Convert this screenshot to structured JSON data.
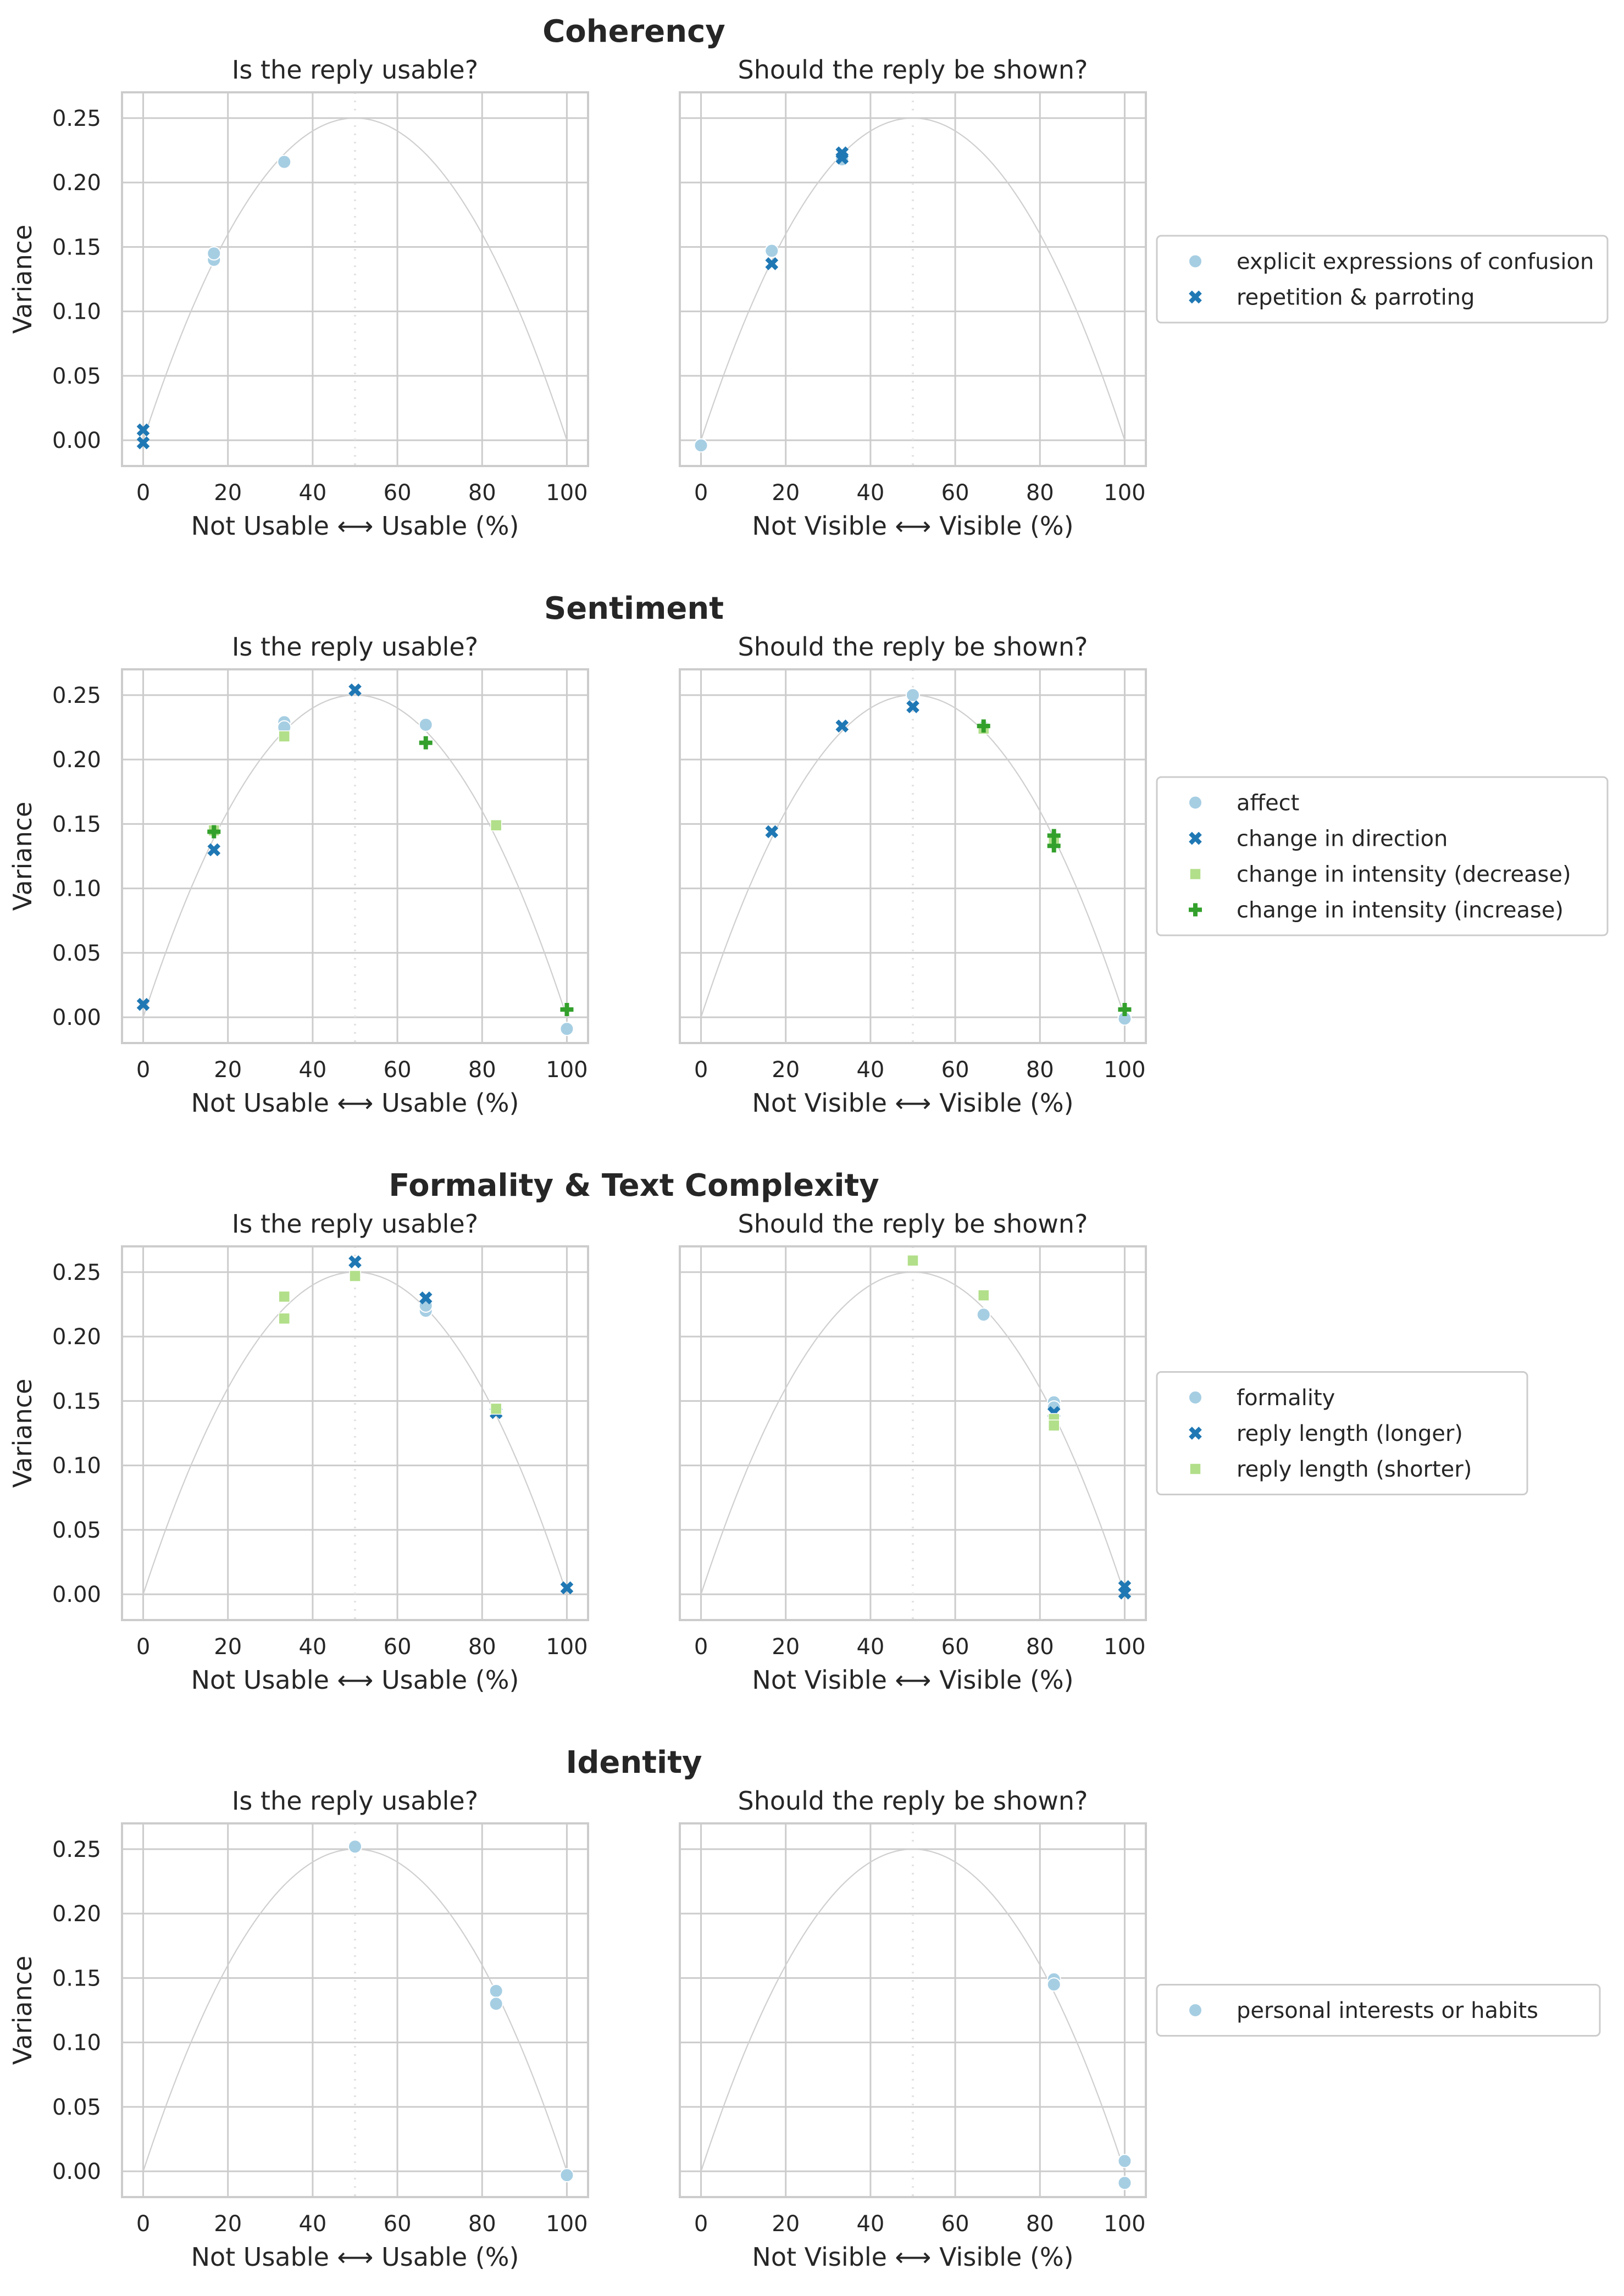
{
  "figure": {
    "y_axis_label": "Variance",
    "panel_titles": [
      "Is the reply usable?",
      "Should the reply be shown?"
    ],
    "x_axis_labels": [
      "Not Usable ⟷ Usable (%)",
      "Not Visible ⟷ Visible (%)"
    ]
  },
  "colors": {
    "series": [
      "#a6cee3",
      "#1f78b4",
      "#b2df8a",
      "#33a02c"
    ],
    "grid": "#cccccc",
    "frame": "#cccccc",
    "parabola": "#cfcfcf",
    "midline": "#e3e3e3",
    "marker_edge": "#ffffff"
  },
  "chart_data": [
    {
      "type": "scatter",
      "title": "Coherency",
      "xlim": [
        -5,
        105
      ],
      "ylim": [
        -0.02,
        0.27
      ],
      "xticks": [
        0,
        20,
        40,
        60,
        80,
        100
      ],
      "yticks": [
        0.0,
        0.05,
        0.1,
        0.15,
        0.2,
        0.25
      ],
      "ytick_labels": [
        "0.00",
        "0.05",
        "0.10",
        "0.15",
        "0.20",
        "0.25"
      ],
      "reference_curve": "x(100-x)/10000",
      "reference_line_x": 50,
      "legend": [
        "explicit expressions of confusion",
        "repetition & parroting"
      ],
      "panels": [
        {
          "title": "Is the reply usable?",
          "xlabel": "Not Usable ⟷ Usable (%)",
          "ylabel": "Variance",
          "series": [
            {
              "name": "explicit expressions of confusion",
              "marker": "circle",
              "points": [
                [
                  16.7,
                  0.14
                ],
                [
                  16.7,
                  0.145
                ],
                [
                  33.3,
                  0.216
                ]
              ]
            },
            {
              "name": "repetition & parroting",
              "marker": "x",
              "points": [
                [
                  0,
                  0.008
                ],
                [
                  0,
                  -0.002
                ]
              ]
            }
          ]
        },
        {
          "title": "Should the reply be shown?",
          "xlabel": "Not Visible ⟷ Visible (%)",
          "ylabel": "",
          "series": [
            {
              "name": "explicit expressions of confusion",
              "marker": "circle",
              "points": [
                [
                  0,
                  -0.004
                ],
                [
                  16.7,
                  0.147
                ],
                [
                  33.3,
                  0.218
                ]
              ]
            },
            {
              "name": "repetition & parroting",
              "marker": "x",
              "points": [
                [
                  16.7,
                  0.137
                ],
                [
                  33.3,
                  0.223
                ],
                [
                  33.3,
                  0.219
                ]
              ]
            }
          ]
        }
      ]
    },
    {
      "type": "scatter",
      "title": "Sentiment",
      "xlim": [
        -5,
        105
      ],
      "ylim": [
        -0.02,
        0.27
      ],
      "xticks": [
        0,
        20,
        40,
        60,
        80,
        100
      ],
      "yticks": [
        0.0,
        0.05,
        0.1,
        0.15,
        0.2,
        0.25
      ],
      "ytick_labels": [
        "0.00",
        "0.05",
        "0.10",
        "0.15",
        "0.20",
        "0.25"
      ],
      "reference_curve": "x(100-x)/10000",
      "reference_line_x": 50,
      "legend": [
        "affect",
        "change in direction",
        "change in intensity (decrease)",
        "change in intensity (increase)"
      ],
      "panels": [
        {
          "title": "Is the reply usable?",
          "xlabel": "Not Usable ⟷ Usable (%)",
          "ylabel": "Variance",
          "series": [
            {
              "name": "affect",
              "marker": "circle",
              "points": [
                [
                  33.3,
                  0.229
                ],
                [
                  33.3,
                  0.225
                ],
                [
                  66.7,
                  0.227
                ],
                [
                  100,
                  -0.009
                ]
              ]
            },
            {
              "name": "change in direction",
              "marker": "x",
              "points": [
                [
                  0,
                  0.01
                ],
                [
                  16.7,
                  0.13
                ],
                [
                  50,
                  0.254
                ]
              ]
            },
            {
              "name": "change in intensity (decrease)",
              "marker": "square",
              "points": [
                [
                  16.7,
                  0.145
                ],
                [
                  33.3,
                  0.218
                ],
                [
                  83.3,
                  0.149
                ]
              ]
            },
            {
              "name": "change in intensity (increase)",
              "marker": "plus",
              "points": [
                [
                  16.7,
                  0.144
                ],
                [
                  66.7,
                  0.213
                ],
                [
                  100,
                  0.006
                ]
              ]
            }
          ]
        },
        {
          "title": "Should the reply be shown?",
          "xlabel": "Not Visible ⟷ Visible (%)",
          "ylabel": "",
          "series": [
            {
              "name": "affect",
              "marker": "circle",
              "points": [
                [
                  50,
                  0.25
                ],
                [
                  66.7,
                  0.225
                ],
                [
                  100,
                  -0.001
                ]
              ]
            },
            {
              "name": "change in direction",
              "marker": "x",
              "points": [
                [
                  16.7,
                  0.144
                ],
                [
                  33.3,
                  0.226
                ],
                [
                  50,
                  0.241
                ]
              ]
            },
            {
              "name": "change in intensity (decrease)",
              "marker": "square",
              "points": [
                [
                  66.7,
                  0.224
                ],
                [
                  83.3,
                  0.136
                ]
              ]
            },
            {
              "name": "change in intensity (increase)",
              "marker": "plus",
              "points": [
                [
                  66.7,
                  0.226
                ],
                [
                  83.3,
                  0.141
                ],
                [
                  83.3,
                  0.133
                ],
                [
                  100,
                  0.006
                ]
              ]
            }
          ]
        }
      ]
    },
    {
      "type": "scatter",
      "title": "Formality & Text Complexity",
      "xlim": [
        -5,
        105
      ],
      "ylim": [
        -0.02,
        0.27
      ],
      "xticks": [
        0,
        20,
        40,
        60,
        80,
        100
      ],
      "yticks": [
        0.0,
        0.05,
        0.1,
        0.15,
        0.2,
        0.25
      ],
      "ytick_labels": [
        "0.00",
        "0.05",
        "0.10",
        "0.15",
        "0.20",
        "0.25"
      ],
      "reference_curve": "x(100-x)/10000",
      "reference_line_x": 50,
      "legend": [
        "formality",
        "reply length (longer)",
        "reply length (shorter)"
      ],
      "panels": [
        {
          "title": "Is the reply usable?",
          "xlabel": "Not Usable ⟷ Usable (%)",
          "ylabel": "Variance",
          "series": [
            {
              "name": "formality",
              "marker": "circle",
              "points": [
                [
                  66.7,
                  0.22
                ],
                [
                  66.7,
                  0.224
                ]
              ]
            },
            {
              "name": "reply length (longer)",
              "marker": "x",
              "points": [
                [
                  50,
                  0.258
                ],
                [
                  66.7,
                  0.23
                ],
                [
                  83.3,
                  0.141
                ],
                [
                  100,
                  0.005
                ]
              ]
            },
            {
              "name": "reply length (shorter)",
              "marker": "square",
              "points": [
                [
                  33.3,
                  0.231
                ],
                [
                  33.3,
                  0.214
                ],
                [
                  50,
                  0.247
                ],
                [
                  83.3,
                  0.144
                ]
              ]
            }
          ]
        },
        {
          "title": "Should the reply be shown?",
          "xlabel": "Not Visible ⟷ Visible (%)",
          "ylabel": "",
          "series": [
            {
              "name": "formality",
              "marker": "circle",
              "points": [
                [
                  66.7,
                  0.217
                ],
                [
                  83.3,
                  0.149
                ],
                [
                  83.3,
                  0.145
                ]
              ]
            },
            {
              "name": "reply length (longer)",
              "marker": "x",
              "points": [
                [
                  83.3,
                  0.141
                ],
                [
                  100,
                  0.006
                ],
                [
                  100,
                  0.001
                ]
              ]
            },
            {
              "name": "reply length (shorter)",
              "marker": "square",
              "points": [
                [
                  50,
                  0.259
                ],
                [
                  66.7,
                  0.232
                ],
                [
                  83.3,
                  0.136
                ],
                [
                  83.3,
                  0.131
                ]
              ]
            }
          ]
        }
      ]
    },
    {
      "type": "scatter",
      "title": "Identity",
      "xlim": [
        -5,
        105
      ],
      "ylim": [
        -0.02,
        0.27
      ],
      "xticks": [
        0,
        20,
        40,
        60,
        80,
        100
      ],
      "yticks": [
        0.0,
        0.05,
        0.1,
        0.15,
        0.2,
        0.25
      ],
      "ytick_labels": [
        "0.00",
        "0.05",
        "0.10",
        "0.15",
        "0.20",
        "0.25"
      ],
      "reference_curve": "x(100-x)/10000",
      "reference_line_x": 50,
      "legend": [
        "personal interests or habits"
      ],
      "panels": [
        {
          "title": "Is the reply usable?",
          "xlabel": "Not Usable ⟷ Usable (%)",
          "ylabel": "Variance",
          "series": [
            {
              "name": "personal interests or habits",
              "marker": "circle",
              "points": [
                [
                  50,
                  0.252
                ],
                [
                  83.3,
                  0.14
                ],
                [
                  83.3,
                  0.13
                ],
                [
                  100,
                  -0.003
                ]
              ]
            }
          ]
        },
        {
          "title": "Should the reply be shown?",
          "xlabel": "Not Visible ⟷ Visible (%)",
          "ylabel": "",
          "series": [
            {
              "name": "personal interests or habits",
              "marker": "circle",
              "points": [
                [
                  83.3,
                  0.149
                ],
                [
                  83.3,
                  0.145
                ],
                [
                  100,
                  0.008
                ],
                [
                  100,
                  -0.009
                ]
              ]
            }
          ]
        }
      ]
    }
  ]
}
